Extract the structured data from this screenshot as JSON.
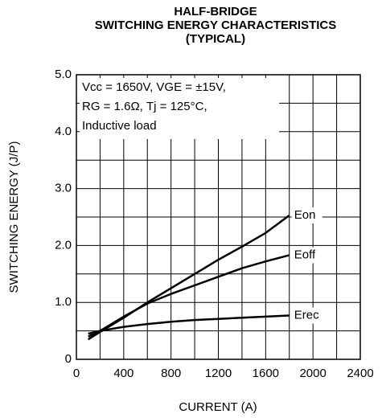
{
  "chart_data": {
    "type": "line",
    "title": [
      "HALF-BRIDGE",
      "SWITCHING ENERGY CHARACTERISTICS",
      "(TYPICAL)"
    ],
    "xlabel": "CURRENT (A)",
    "ylabel": "SWITCHING ENERGY (J/P)",
    "annotation": [
      "Vcc = 1650V, VGE = ±15V,",
      "RG = 1.6Ω, Tj = 125°C,",
      "Inductive load"
    ],
    "x": [
      100,
      200,
      400,
      600,
      800,
      1000,
      1200,
      1400,
      1600,
      1800
    ],
    "series": [
      {
        "name": "Eon",
        "color": "#000000",
        "values": [
          0.35,
          0.48,
          0.73,
          1.0,
          1.25,
          1.5,
          1.75,
          1.98,
          2.22,
          2.53
        ]
      },
      {
        "name": "Eoff",
        "color": "#000000",
        "values": [
          0.4,
          0.5,
          0.75,
          0.98,
          1.15,
          1.3,
          1.45,
          1.6,
          1.72,
          1.83
        ]
      },
      {
        "name": "Erec",
        "color": "#000000",
        "values": [
          0.45,
          0.5,
          0.57,
          0.62,
          0.66,
          0.69,
          0.71,
          0.73,
          0.75,
          0.77
        ]
      }
    ],
    "xlim": [
      0,
      2400
    ],
    "xticks": [
      0,
      400,
      800,
      1200,
      1600,
      2000,
      2400
    ],
    "ylim": [
      0,
      5
    ],
    "yticks": [
      0,
      {
        "value": 1,
        "label": "1.0"
      },
      {
        "value": 2,
        "label": "2.0"
      },
      {
        "value": 3,
        "label": "3.0"
      },
      {
        "value": 4,
        "label": "4.0"
      },
      {
        "value": 5,
        "label": "5.0"
      }
    ],
    "xminor": [
      200,
      600,
      1000,
      1400,
      1800,
      2200
    ],
    "yminor": [
      0.5,
      1.5,
      2.5,
      3.5,
      4.5
    ],
    "grid": true
  }
}
